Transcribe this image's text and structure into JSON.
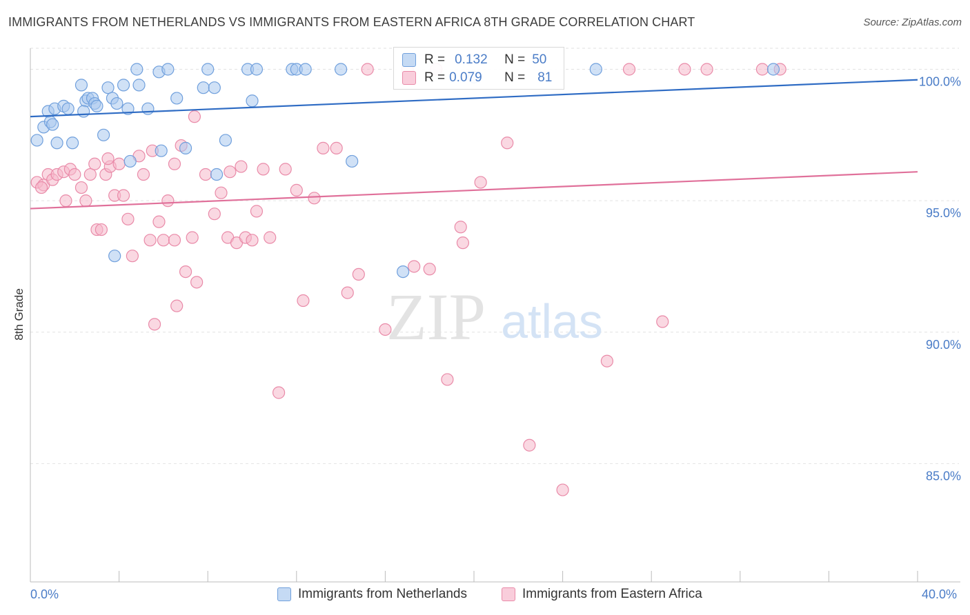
{
  "title": "IMMIGRANTS FROM NETHERLANDS VS IMMIGRANTS FROM EASTERN AFRICA 8TH GRADE CORRELATION CHART",
  "source": "Source: ZipAtlas.com",
  "watermark": {
    "zip": "ZIP",
    "atlas": "atlas"
  },
  "legend": {
    "r_label": "R =",
    "n_label": "N =",
    "rows": [
      {
        "r": "0.132",
        "n": "50"
      },
      {
        "r": "0.079",
        "n": "81"
      }
    ]
  },
  "colors": {
    "blue_fill": "#a9c8ef",
    "blue_stroke": "#6f9fdc",
    "blue_line": "#2f6cc4",
    "pink_fill": "#f5b8ca",
    "pink_stroke": "#e98aa8",
    "pink_line": "#e0709a",
    "tick_label": "#4a7cc7",
    "grid": "#e2e2e2"
  },
  "chart_data": {
    "type": "scatter",
    "title": "IMMIGRANTS FROM NETHERLANDS VS IMMIGRANTS FROM EASTERN AFRICA 8TH GRADE CORRELATION CHART",
    "xlabel": "",
    "ylabel": "8th Grade",
    "xlim": [
      0,
      40
    ],
    "ylim": [
      80.5,
      100.8
    ],
    "x_tick_labels": [
      "0.0%",
      "40.0%"
    ],
    "y_ticks": [
      85,
      90,
      95,
      100
    ],
    "y_tick_labels": [
      "85.0%",
      "90.0%",
      "95.0%",
      "100.0%"
    ],
    "grid": true,
    "legend_position": "top-center",
    "series": [
      {
        "name": "Immigrants from Netherlands",
        "color": "blue",
        "trend": {
          "x": [
            0,
            40
          ],
          "y": [
            98.2,
            99.6
          ]
        },
        "points": [
          [
            0.6,
            97.8
          ],
          [
            0.8,
            98.4
          ],
          [
            0.9,
            98.0
          ],
          [
            1.0,
            97.9
          ],
          [
            1.1,
            98.5
          ],
          [
            1.2,
            97.2
          ],
          [
            1.5,
            98.6
          ],
          [
            1.7,
            98.5
          ],
          [
            1.9,
            97.2
          ],
          [
            2.3,
            99.4
          ],
          [
            2.5,
            98.8
          ],
          [
            2.6,
            98.9
          ],
          [
            2.8,
            98.9
          ],
          [
            2.9,
            98.7
          ],
          [
            2.4,
            98.4
          ],
          [
            3.0,
            98.6
          ],
          [
            3.3,
            97.5
          ],
          [
            3.5,
            99.3
          ],
          [
            3.7,
            98.9
          ],
          [
            3.9,
            98.7
          ],
          [
            4.2,
            99.4
          ],
          [
            4.4,
            98.5
          ],
          [
            4.5,
            96.5
          ],
          [
            4.8,
            100.0
          ],
          [
            4.9,
            99.4
          ],
          [
            5.3,
            98.5
          ],
          [
            5.8,
            99.9
          ],
          [
            5.9,
            96.9
          ],
          [
            6.2,
            100.0
          ],
          [
            6.6,
            98.9
          ],
          [
            7.0,
            97.0
          ],
          [
            7.8,
            99.3
          ],
          [
            8.0,
            100.0
          ],
          [
            8.3,
            99.3
          ],
          [
            8.4,
            96.0
          ],
          [
            8.8,
            97.3
          ],
          [
            9.8,
            100.0
          ],
          [
            10.0,
            98.8
          ],
          [
            10.2,
            100.0
          ],
          [
            11.8,
            100.0
          ],
          [
            12.0,
            100.0
          ],
          [
            12.4,
            100.0
          ],
          [
            14.0,
            100.0
          ],
          [
            14.5,
            96.5
          ],
          [
            16.8,
            92.3
          ],
          [
            3.8,
            92.9
          ],
          [
            20.0,
            99.7
          ],
          [
            25.5,
            100.0
          ],
          [
            33.5,
            100.0
          ],
          [
            0.3,
            97.3
          ]
        ]
      },
      {
        "name": "Immigrants from Eastern Africa",
        "color": "pink",
        "trend": {
          "x": [
            0,
            40
          ],
          "y": [
            94.7,
            96.1
          ]
        },
        "points": [
          [
            0.3,
            95.7
          ],
          [
            0.6,
            95.6
          ],
          [
            0.8,
            96.0
          ],
          [
            1.0,
            95.8
          ],
          [
            1.2,
            96.0
          ],
          [
            1.5,
            96.1
          ],
          [
            1.6,
            95.0
          ],
          [
            1.8,
            96.2
          ],
          [
            2.0,
            96.0
          ],
          [
            2.3,
            95.5
          ],
          [
            2.5,
            95.0
          ],
          [
            2.7,
            96.0
          ],
          [
            2.9,
            96.4
          ],
          [
            3.0,
            93.9
          ],
          [
            3.2,
            93.9
          ],
          [
            3.4,
            96.0
          ],
          [
            3.6,
            96.3
          ],
          [
            3.8,
            95.2
          ],
          [
            4.0,
            96.4
          ],
          [
            4.2,
            95.2
          ],
          [
            4.4,
            94.3
          ],
          [
            4.6,
            92.9
          ],
          [
            4.9,
            96.7
          ],
          [
            5.1,
            96.0
          ],
          [
            5.4,
            93.5
          ],
          [
            5.6,
            90.3
          ],
          [
            5.8,
            94.2
          ],
          [
            6.0,
            93.5
          ],
          [
            6.2,
            95.0
          ],
          [
            6.5,
            93.5
          ],
          [
            6.6,
            91.0
          ],
          [
            6.8,
            97.1
          ],
          [
            7.0,
            92.3
          ],
          [
            7.3,
            93.6
          ],
          [
            7.5,
            91.9
          ],
          [
            7.9,
            96.0
          ],
          [
            8.3,
            94.5
          ],
          [
            8.6,
            95.3
          ],
          [
            8.9,
            93.6
          ],
          [
            9.3,
            93.4
          ],
          [
            9.5,
            96.3
          ],
          [
            9.7,
            93.6
          ],
          [
            10.0,
            93.5
          ],
          [
            10.2,
            94.6
          ],
          [
            10.5,
            96.2
          ],
          [
            10.8,
            93.6
          ],
          [
            11.2,
            87.7
          ],
          [
            11.5,
            96.2
          ],
          [
            12.0,
            95.4
          ],
          [
            12.3,
            91.2
          ],
          [
            12.8,
            95.1
          ],
          [
            13.2,
            97.0
          ],
          [
            13.8,
            97.0
          ],
          [
            14.3,
            91.5
          ],
          [
            14.8,
            92.2
          ],
          [
            15.2,
            100.0
          ],
          [
            16.0,
            90.1
          ],
          [
            17.0,
            100.0
          ],
          [
            17.3,
            92.5
          ],
          [
            18.0,
            92.4
          ],
          [
            18.3,
            100.0
          ],
          [
            18.8,
            88.2
          ],
          [
            19.4,
            94.0
          ],
          [
            19.5,
            93.4
          ],
          [
            20.3,
            95.7
          ],
          [
            21.5,
            97.2
          ],
          [
            22.5,
            85.7
          ],
          [
            24.0,
            84.0
          ],
          [
            26.0,
            88.9
          ],
          [
            27.0,
            100.0
          ],
          [
            28.5,
            90.4
          ],
          [
            29.5,
            100.0
          ],
          [
            30.5,
            100.0
          ],
          [
            33.0,
            100.0
          ],
          [
            33.8,
            100.0
          ],
          [
            6.5,
            96.4
          ],
          [
            5.5,
            96.9
          ],
          [
            3.5,
            96.6
          ],
          [
            7.4,
            98.2
          ],
          [
            9.0,
            96.1
          ],
          [
            0.5,
            95.5
          ]
        ]
      }
    ]
  }
}
